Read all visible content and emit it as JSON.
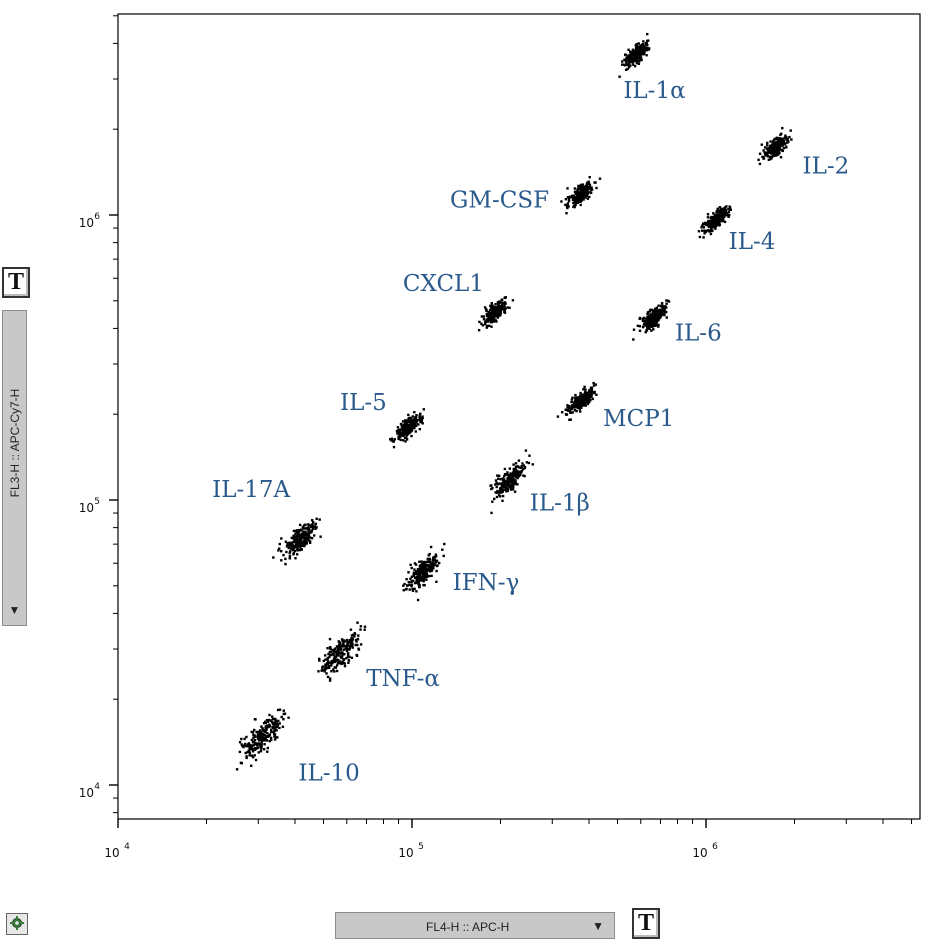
{
  "chart_data": {
    "type": "scatter",
    "title": "",
    "xlabel": "FL4-H :: APC-H",
    "ylabel": "FL3-H :: APC-Cy7-H",
    "x_scale": "log",
    "y_scale": "log",
    "xlim": [
      10000,
      5000000
    ],
    "ylim": [
      8000,
      6000000
    ],
    "x_ticks": [
      {
        "base": "10",
        "exp": "4",
        "value": 10000
      },
      {
        "base": "10",
        "exp": "5",
        "value": 100000
      },
      {
        "base": "10",
        "exp": "6",
        "value": 1000000
      }
    ],
    "y_ticks": [
      {
        "base": "10",
        "exp": "4",
        "value": 10000
      },
      {
        "base": "10",
        "exp": "5",
        "value": 100000
      },
      {
        "base": "10",
        "exp": "6",
        "value": 1000000
      }
    ],
    "grid": false,
    "point_color": "#000000",
    "label_color": "#2a5a8c",
    "populations": [
      {
        "name": "IL-1α",
        "x": 575000,
        "y": 3700000
      },
      {
        "name": "IL-2",
        "x": 1710000,
        "y": 1750000
      },
      {
        "name": "GM-CSF",
        "x": 370000,
        "y": 1190000
      },
      {
        "name": "IL-4",
        "x": 1070000,
        "y": 970000
      },
      {
        "name": "CXCL1",
        "x": 190000,
        "y": 460000
      },
      {
        "name": "IL-6",
        "x": 660000,
        "y": 440000
      },
      {
        "name": "IL-5",
        "x": 96000,
        "y": 182000
      },
      {
        "name": "MCP1",
        "x": 370000,
        "y": 224000
      },
      {
        "name": "IL-1β",
        "x": 215000,
        "y": 119000
      },
      {
        "name": "IL-17A",
        "x": 41000,
        "y": 73000
      },
      {
        "name": "IFN-γ",
        "x": 107000,
        "y": 56000
      },
      {
        "name": "TNF-α",
        "x": 57000,
        "y": 29500
      },
      {
        "name": "IL-10",
        "x": 30500,
        "y": 14800
      }
    ]
  },
  "ui": {
    "x_axis_selector": "FL4-H :: APC-H",
    "y_axis_selector": "FL3-H :: APC-Cy7-H",
    "dropdown_arrow": "▼",
    "t_button_label": "T",
    "settings_icon": "gear-icon"
  }
}
